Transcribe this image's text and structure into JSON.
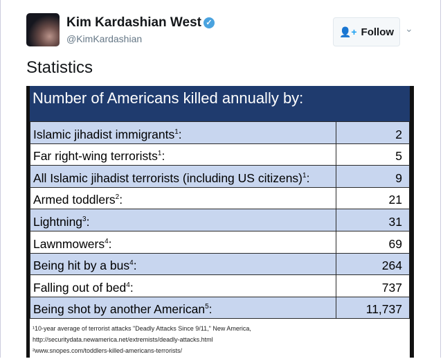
{
  "tweet": {
    "name": "Kim Kardashian West",
    "handle": "@KimKardashian",
    "follow_label": "Follow",
    "text": "Statistics"
  },
  "image": {
    "title": "Number of Americans killed annually by:",
    "rows": [
      {
        "label": "Islamic jihadist immigrants",
        "sup": "1",
        "suffix": ":",
        "value": "2"
      },
      {
        "label": "Far right-wing terrorists",
        "sup": "1",
        "suffix": ":",
        "value": "5"
      },
      {
        "label": "All Islamic jihadist terrorists (including US citizens)",
        "sup": "1",
        "suffix": ":",
        "value": "9"
      },
      {
        "label": "Armed toddlers",
        "sup": "2",
        "suffix": ":",
        "value": "21"
      },
      {
        "label": "Lightning",
        "sup": "3",
        "suffix": ":",
        "value": "31"
      },
      {
        "label": "Lawnmowers",
        "sup": "4",
        "suffix": ":",
        "value": "69"
      },
      {
        "label": "Being hit by a bus",
        "sup": "4",
        "suffix": ":",
        "value": "264"
      },
      {
        "label": "Falling out of bed",
        "sup": "4",
        "suffix": ":",
        "value": "737"
      },
      {
        "label": "Being shot by another American",
        "sup": "5",
        "suffix": ":",
        "value": "11,737"
      }
    ],
    "notes": [
      "¹10-year average of terrorist attacks \"Deadly Attacks Since 9/11,\" New America,",
      "http://securitydata.newamerica.net/extremists/deadly-attacks.html",
      "²www.snopes.com/toddlers-killed-americans-terrorists/"
    ],
    "colors": {
      "header": "#1f3b6e",
      "row_blue": "#c8d6ef",
      "row_white": "#ffffff"
    }
  }
}
